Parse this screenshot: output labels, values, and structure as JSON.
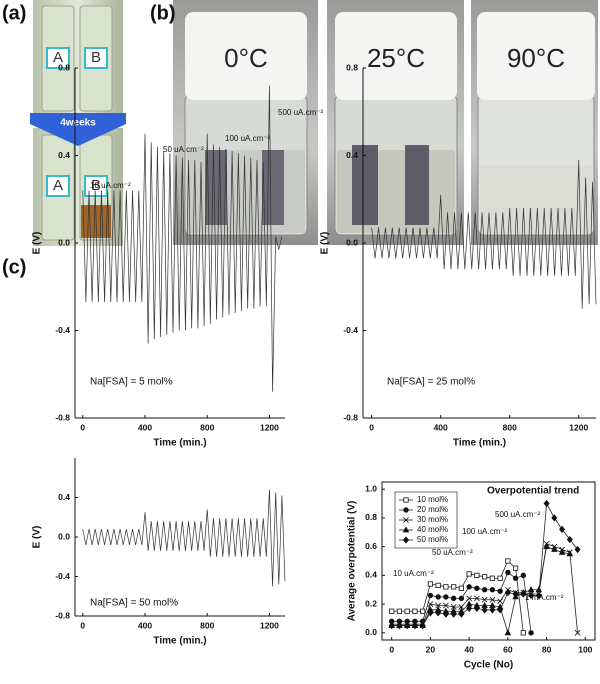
{
  "panel_labels": [
    "(a)",
    "(b)",
    "(c)"
  ],
  "photo_a": {
    "vial_labels": [
      "A",
      "B",
      "A",
      "B"
    ],
    "arrow_label": "4weeks"
  },
  "photo_b": {
    "temperatures": [
      "0°C",
      "25°C",
      "90°C"
    ]
  },
  "chart_data": [
    {
      "type": "line",
      "xlabel": "Time (min.)",
      "ylabel": "E (V)",
      "annotations": [
        "10 uA.cm⁻²",
        "50 uA.cm⁻²",
        "100 uA.cm⁻²",
        "500 uA.cm⁻²",
        "Na[FSA] = 5 mol%"
      ],
      "xlim": [
        -50,
        1300
      ],
      "xticks": [
        0,
        400,
        800,
        1200
      ],
      "ylim": [
        -0.8,
        0.8
      ],
      "yticks": [
        -0.8,
        -0.4,
        {
          "value": 0,
          "label": "0.0"
        },
        0.4,
        0.8
      ],
      "x": [
        0,
        20,
        40,
        60,
        80,
        100,
        120,
        140,
        160,
        180,
        200,
        220,
        240,
        260,
        280,
        300,
        320,
        340,
        360,
        380,
        400,
        420,
        440,
        460,
        480,
        500,
        520,
        540,
        560,
        580,
        600,
        620,
        640,
        660,
        680,
        700,
        720,
        740,
        760,
        780,
        800,
        820,
        840,
        860,
        880,
        900,
        920,
        940,
        960,
        980,
        1000,
        1020,
        1040,
        1060,
        1080,
        1100,
        1120,
        1140,
        1160,
        1180,
        1200,
        1220,
        1240,
        1260,
        1280
      ],
      "series": [
        {
          "color": "#333333",
          "values": [
            0.24,
            -0.27,
            0.24,
            -0.27,
            0.24,
            -0.27,
            0.24,
            -0.27,
            0.24,
            -0.27,
            0.24,
            -0.27,
            0.24,
            -0.27,
            0.24,
            -0.27,
            0.24,
            -0.27,
            0.24,
            -0.27,
            0.5,
            -0.46,
            0.46,
            -0.44,
            0.44,
            -0.43,
            0.42,
            -0.42,
            0.41,
            -0.41,
            0.4,
            -0.4,
            0.39,
            -0.4,
            0.38,
            -0.39,
            0.38,
            -0.39,
            0.37,
            -0.38,
            0.5,
            -0.37,
            0.45,
            -0.35,
            0.44,
            -0.34,
            0.43,
            -0.33,
            0.42,
            -0.32,
            0.41,
            -0.31,
            0.4,
            -0.3,
            0.39,
            -0.3,
            0.38,
            -0.29,
            0.37,
            -0.29,
            0.72,
            -0.68,
            0.03,
            -0.03,
            0.03
          ]
        }
      ]
    },
    {
      "type": "line",
      "xlabel": "Time (min.)",
      "ylabel": "E (V)",
      "annotations": [
        "Na[FSA] = 25 mol%"
      ],
      "xlim": [
        -50,
        1300
      ],
      "xticks": [
        0,
        400,
        800,
        1200
      ],
      "ylim": [
        -0.8,
        0.8
      ],
      "yticks": [
        -0.8,
        -0.4,
        {
          "value": 0,
          "label": "0.0"
        },
        0.4,
        0.8
      ],
      "x": [
        0,
        20,
        40,
        60,
        80,
        100,
        120,
        140,
        160,
        180,
        200,
        220,
        240,
        260,
        280,
        300,
        320,
        340,
        360,
        380,
        400,
        420,
        440,
        460,
        480,
        500,
        520,
        540,
        560,
        580,
        600,
        620,
        640,
        660,
        680,
        700,
        720,
        740,
        760,
        780,
        800,
        820,
        840,
        860,
        880,
        900,
        920,
        940,
        960,
        980,
        1000,
        1020,
        1040,
        1060,
        1080,
        1100,
        1120,
        1140,
        1160,
        1180,
        1200,
        1220,
        1240,
        1260,
        1280,
        1300
      ],
      "series": [
        {
          "color": "#333333",
          "values": [
            0.07,
            -0.07,
            0.07,
            -0.07,
            0.07,
            -0.07,
            0.07,
            -0.07,
            0.07,
            -0.07,
            0.07,
            -0.07,
            0.07,
            -0.07,
            0.07,
            -0.07,
            0.07,
            -0.07,
            0.07,
            -0.07,
            0.22,
            -0.12,
            0.14,
            -0.12,
            0.14,
            -0.12,
            0.14,
            -0.12,
            0.14,
            -0.12,
            0.14,
            -0.12,
            0.14,
            -0.12,
            0.14,
            -0.12,
            0.14,
            -0.12,
            0.14,
            -0.12,
            0.16,
            -0.15,
            0.16,
            -0.15,
            0.16,
            -0.15,
            0.16,
            -0.15,
            0.16,
            -0.15,
            0.16,
            -0.15,
            0.16,
            -0.15,
            0.16,
            -0.15,
            0.16,
            -0.15,
            0.16,
            -0.15,
            0.38,
            -0.3,
            0.3,
            -0.28,
            0.28,
            -0.28
          ]
        }
      ]
    },
    {
      "type": "line",
      "xlabel": "Time (min.)",
      "ylabel": "E (V)",
      "annotations": [
        "Na[FSA] = 50 mol%"
      ],
      "xlim": [
        -50,
        1300
      ],
      "xticks": [
        0,
        400,
        800,
        1200
      ],
      "ylim": [
        -0.8,
        0.8
      ],
      "yticks": [
        -0.8,
        -0.4,
        {
          "value": 0,
          "label": "0.0"
        },
        0.4
      ],
      "x": [
        0,
        20,
        40,
        60,
        80,
        100,
        120,
        140,
        160,
        180,
        200,
        220,
        240,
        260,
        280,
        300,
        320,
        340,
        360,
        380,
        400,
        420,
        440,
        460,
        480,
        500,
        520,
        540,
        560,
        580,
        600,
        620,
        640,
        660,
        680,
        700,
        720,
        740,
        760,
        780,
        800,
        820,
        840,
        860,
        880,
        900,
        920,
        940,
        960,
        980,
        1000,
        1020,
        1040,
        1060,
        1080,
        1100,
        1120,
        1140,
        1160,
        1180,
        1200,
        1220,
        1240,
        1260,
        1280,
        1300
      ],
      "series": [
        {
          "color": "#333333",
          "values": [
            0.08,
            -0.08,
            0.08,
            -0.08,
            0.08,
            -0.08,
            0.08,
            -0.08,
            0.08,
            -0.08,
            0.08,
            -0.08,
            0.08,
            -0.08,
            0.08,
            -0.08,
            0.08,
            -0.08,
            0.08,
            -0.08,
            0.25,
            -0.14,
            0.16,
            -0.14,
            0.16,
            -0.14,
            0.16,
            -0.14,
            0.16,
            -0.14,
            0.16,
            -0.14,
            0.16,
            -0.14,
            0.16,
            -0.14,
            0.16,
            -0.14,
            0.16,
            -0.14,
            0.28,
            -0.2,
            0.19,
            -0.2,
            0.19,
            -0.2,
            0.19,
            -0.2,
            0.19,
            -0.2,
            0.19,
            -0.2,
            0.19,
            -0.2,
            0.19,
            -0.2,
            0.19,
            -0.2,
            0.19,
            -0.2,
            0.48,
            -0.5,
            0.45,
            -0.48,
            0.42,
            -0.45
          ]
        }
      ]
    },
    {
      "type": "line",
      "markers": true,
      "frame": true,
      "xlabel": "Cycle (No)",
      "ylabel": "Average overpotential (V)",
      "annotations": [
        "Overpotential trend",
        "10 uA.cm⁻²",
        "50 uA.cm⁻²",
        "100 uA.cm⁻²",
        "500 uA.cm⁻²",
        "1 mA.cm⁻²"
      ],
      "xlim": [
        -5,
        105
      ],
      "xticks": [
        0,
        20,
        40,
        60,
        80,
        100
      ],
      "ylim": [
        -0.05,
        1.05
      ],
      "yticks": [
        {
          "value": 0,
          "label": "0.0"
        },
        0.2,
        0.4,
        0.6,
        0.8,
        {
          "value": 1,
          "label": "1.0"
        }
      ],
      "x": [
        0,
        4,
        8,
        12,
        16,
        20,
        24,
        28,
        32,
        36,
        40,
        44,
        48,
        52,
        56,
        60,
        64,
        68,
        72,
        76,
        80,
        84,
        88,
        92,
        96
      ],
      "series": [
        {
          "name": "10 mol%",
          "color": "#222222",
          "marker": "open-square",
          "values": [
            0.15,
            0.15,
            0.15,
            0.15,
            0.15,
            0.34,
            0.33,
            0.32,
            0.32,
            0.31,
            0.41,
            0.4,
            0.39,
            0.38,
            0.38,
            0.5,
            0.45,
            0,
            null,
            null,
            null,
            null,
            null,
            null,
            null
          ]
        },
        {
          "name": "20 mol%",
          "color": "#222222",
          "marker": "circle",
          "values": [
            0.08,
            0.08,
            0.08,
            0.08,
            0.08,
            0.26,
            0.25,
            0.25,
            0.24,
            0.24,
            0.32,
            0.31,
            0.3,
            0.3,
            0.29,
            0.42,
            0.38,
            0.4,
            0,
            null,
            null,
            null,
            null,
            null,
            null
          ]
        },
        {
          "name": "30 mol%",
          "color": "#222222",
          "marker": "star",
          "values": [
            0.06,
            0.06,
            0.06,
            0.06,
            0.06,
            0.2,
            0.19,
            0.19,
            0.18,
            0.18,
            0.24,
            0.24,
            0.23,
            0.23,
            0.22,
            0.3,
            0.28,
            0.28,
            0.27,
            0.27,
            0.62,
            0.6,
            0.58,
            0.56,
            0
          ]
        },
        {
          "name": "40 mol%",
          "color": "#222222",
          "marker": "triangle",
          "values": [
            0.05,
            0.05,
            0.05,
            0.05,
            0.05,
            0.16,
            0.16,
            0.15,
            0.15,
            0.15,
            0.2,
            0.19,
            0.19,
            0.19,
            0.18,
            0,
            0.25,
            0.28,
            0.3,
            0.3,
            0.6,
            0.58,
            0.56,
            0.55,
            null
          ]
        },
        {
          "name": "50 mol%",
          "color": "#222222",
          "marker": "diamond",
          "values": [
            0.05,
            0.05,
            0.05,
            0.05,
            0.05,
            0.14,
            0.14,
            0.13,
            0.13,
            0.13,
            0.17,
            0.17,
            0.16,
            0.16,
            0.16,
            0.28,
            0.27,
            0.27,
            0.26,
            0.26,
            0.9,
            0.8,
            0.72,
            0.65,
            0.58
          ]
        }
      ]
    }
  ]
}
